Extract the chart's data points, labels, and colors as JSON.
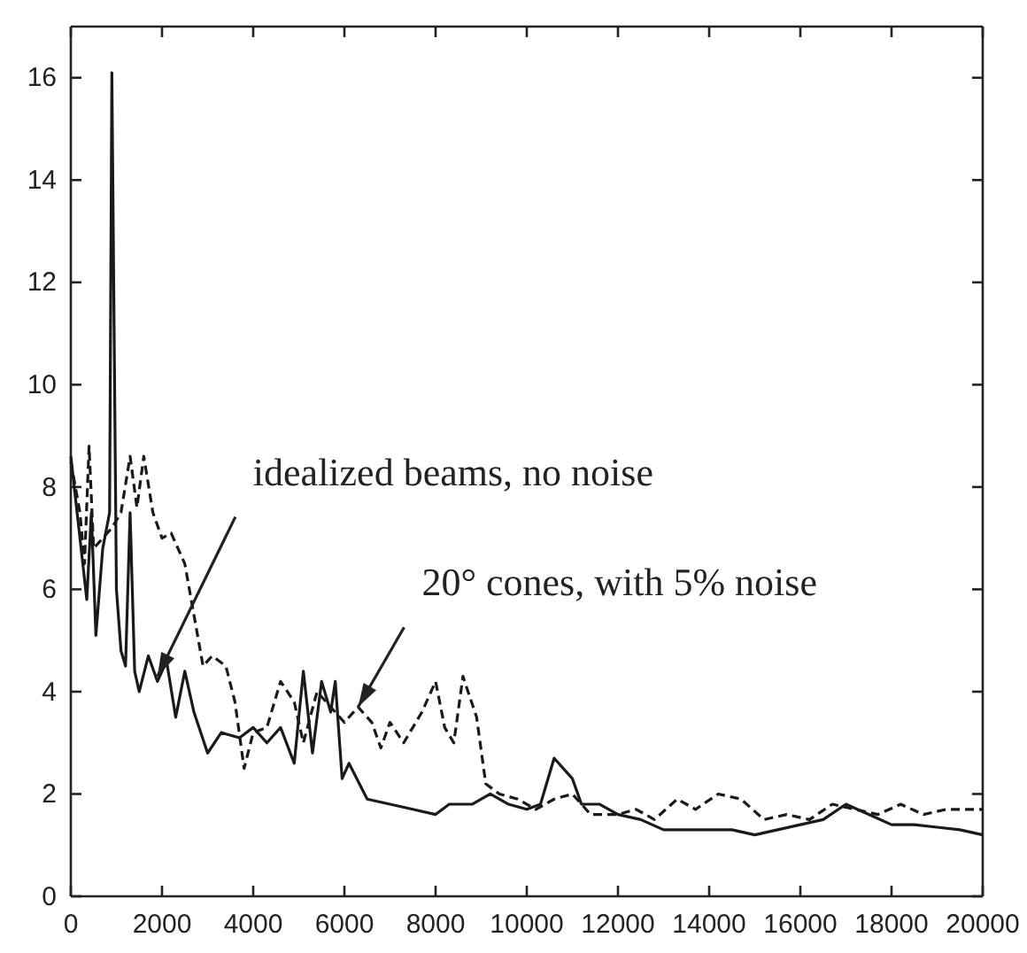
{
  "chart_data": {
    "type": "line",
    "xlim": [
      0,
      20000
    ],
    "xticks": [
      0,
      2000,
      4000,
      6000,
      8000,
      10000,
      12000,
      14000,
      16000,
      18000,
      20000
    ],
    "ylim": [
      0,
      17
    ],
    "yticks": [
      0,
      2,
      4,
      6,
      8,
      10,
      12,
      14,
      16
    ],
    "grid": false,
    "annotations": [
      {
        "text": "idealized beams, no noise",
        "x": 1900,
        "y": 4.3
      },
      {
        "text": "20° cones, with 5% noise",
        "x": 6300,
        "y": 3.7
      }
    ],
    "series": [
      {
        "color": "#1a1a1a",
        "line_style": "solid",
        "x": [
          0,
          200,
          350,
          450,
          550,
          700,
          850,
          900,
          1000,
          1100,
          1200,
          1300,
          1400,
          1500,
          1700,
          1900,
          2100,
          2300,
          2500,
          2700,
          3000,
          3300,
          3700,
          4000,
          4300,
          4600,
          4900,
          5100,
          5300,
          5500,
          5700,
          5800,
          5950,
          6100,
          6500,
          7000,
          7500,
          8000,
          8300,
          8800,
          9200,
          9600,
          10000,
          10300,
          10600,
          11000,
          11200,
          11600,
          12000,
          12500,
          13000,
          13500,
          14000,
          14500,
          15000,
          15500,
          16000,
          16500,
          17000,
          17500,
          18000,
          18500,
          19000,
          19500,
          20000
        ],
        "values": [
          8.6,
          7,
          5.8,
          7.5,
          5.1,
          6.8,
          7.5,
          16.1,
          6,
          4.8,
          4.5,
          7.5,
          4.4,
          4,
          4.7,
          4.2,
          4.6,
          3.5,
          4.4,
          3.6,
          2.8,
          3.2,
          3.1,
          3.3,
          3,
          3.3,
          2.6,
          4.4,
          2.8,
          4.2,
          3.6,
          4.2,
          2.3,
          2.6,
          1.9,
          1.8,
          1.7,
          1.6,
          1.8,
          1.8,
          2,
          1.8,
          1.7,
          1.8,
          2.7,
          2.3,
          1.8,
          1.8,
          1.6,
          1.5,
          1.3,
          1.3,
          1.3,
          1.3,
          1.2,
          1.3,
          1.4,
          1.5,
          1.8,
          1.6,
          1.4,
          1.4,
          1.35,
          1.3,
          1.2
        ]
      },
      {
        "color": "#1a1a1a",
        "line_style": "dashed",
        "x": [
          0,
          200,
          300,
          400,
          500,
          700,
          900,
          1100,
          1300,
          1450,
          1600,
          1800,
          2000,
          2200,
          2500,
          2700,
          2900,
          3100,
          3400,
          3600,
          3800,
          4000,
          4300,
          4600,
          4900,
          5100,
          5400,
          5700,
          6000,
          6300,
          6600,
          6800,
          7000,
          7300,
          7700,
          8000,
          8200,
          8400,
          8600,
          8900,
          9100,
          9400,
          9800,
          10200,
          10600,
          11000,
          11400,
          12000,
          12400,
          12800,
          13300,
          13700,
          14200,
          14700,
          15200,
          15700,
          16200,
          16700,
          17200,
          17700,
          18200,
          18700,
          19200,
          20000
        ],
        "values": [
          8.5,
          7.5,
          6.5,
          8.8,
          6.8,
          7,
          7.2,
          7.5,
          8.6,
          7.6,
          8.6,
          7.5,
          7,
          7.1,
          6.5,
          5.5,
          4.5,
          4.7,
          4.5,
          3.8,
          2.5,
          3.2,
          3.3,
          4.2,
          3.8,
          3,
          4,
          3.7,
          3.4,
          3.7,
          3.4,
          2.9,
          3.4,
          3,
          3.6,
          4.2,
          3.3,
          3,
          4.3,
          3.5,
          2.2,
          2,
          1.9,
          1.7,
          1.9,
          2,
          1.6,
          1.6,
          1.7,
          1.5,
          1.9,
          1.7,
          2,
          1.9,
          1.5,
          1.6,
          1.5,
          1.8,
          1.7,
          1.6,
          1.8,
          1.6,
          1.7,
          1.7
        ]
      }
    ]
  }
}
